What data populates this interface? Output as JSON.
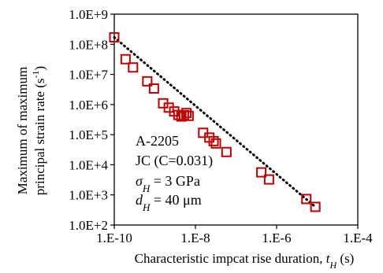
{
  "chart_data": {
    "type": "scatter",
    "x_scale": "log",
    "y_scale": "log",
    "xlim": [
      1e-10,
      0.0001
    ],
    "ylim": [
      100,
      1000000000.0
    ],
    "x_ticks": [
      {
        "value": 1e-10,
        "label": "1.E-10"
      },
      {
        "value": 1e-08,
        "label": "1.E-8"
      },
      {
        "value": 1e-06,
        "label": "1.E-6"
      },
      {
        "value": 0.0001,
        "label": "1.E-4"
      }
    ],
    "y_ticks": [
      {
        "value": 1000000000.0,
        "label": "1.0E+9"
      },
      {
        "value": 100000000.0,
        "label": "1.0E+8"
      },
      {
        "value": 10000000.0,
        "label": "1.0E+7"
      },
      {
        "value": 1000000.0,
        "label": "1.0E+6"
      },
      {
        "value": 100000.0,
        "label": "1.0E+5"
      },
      {
        "value": 10000.0,
        "label": "1.0E+4"
      },
      {
        "value": 1000.0,
        "label": "1.0E+3"
      },
      {
        "value": 100.0,
        "label": "1.0E+2"
      }
    ],
    "xlabel": {
      "main": "Characteristic impcat rise duration, ",
      "var": "t",
      "sub": "H",
      "unit": " (s)"
    },
    "ylabel": {
      "line1": "Maximum of maximum",
      "line2_main": "principal strain rate (s",
      "line2_sup": "-1",
      "line2_end": ")"
    },
    "grid": false,
    "legend": "none",
    "annotations": {
      "line1": "A-2205",
      "line2": "JC (C=0.031)",
      "line3": {
        "sym": "σ",
        "sub": "H",
        "rest": " = 3 GPa"
      },
      "line4": {
        "sym": "d",
        "sub": "H",
        "rest": " = 40 μm"
      }
    },
    "series": [
      {
        "marker": "open-square",
        "color": "#c00000",
        "points": [
          {
            "x": 1e-10,
            "y": 170000000.0
          },
          {
            "x": 1.9e-10,
            "y": 32000000.0
          },
          {
            "x": 2.9e-10,
            "y": 17000000.0
          },
          {
            "x": 6.5e-10,
            "y": 5900000.0
          },
          {
            "x": 9.5e-10,
            "y": 3400000.0
          },
          {
            "x": 1.6e-09,
            "y": 1100000.0
          },
          {
            "x": 2.2e-09,
            "y": 790000.0
          },
          {
            "x": 3e-09,
            "y": 590000.0
          },
          {
            "x": 3.8e-09,
            "y": 450000.0
          },
          {
            "x": 4.5e-09,
            "y": 400000.0
          },
          {
            "x": 5.2e-09,
            "y": 440000.0
          },
          {
            "x": 6e-09,
            "y": 520000.0
          },
          {
            "x": 6.8e-09,
            "y": 420000.0
          },
          {
            "x": 1.55e-08,
            "y": 115000.0
          },
          {
            "x": 2.2e-08,
            "y": 80000.0
          },
          {
            "x": 2.8e-08,
            "y": 61000.0
          },
          {
            "x": 3.2e-08,
            "y": 51000.0
          },
          {
            "x": 5.8e-08,
            "y": 26500.0
          },
          {
            "x": 4.2e-07,
            "y": 5600.0
          },
          {
            "x": 6.5e-07,
            "y": 3250.0
          },
          {
            "x": 5.4e-06,
            "y": 730
          },
          {
            "x": 9e-06,
            "y": 400
          }
        ]
      }
    ],
    "trendline": {
      "style": "dotted",
      "color": "#000000",
      "from": {
        "x": 1e-10,
        "y": 170000000.0
      },
      "to": {
        "x": 9e-06,
        "y": 400
      }
    }
  }
}
